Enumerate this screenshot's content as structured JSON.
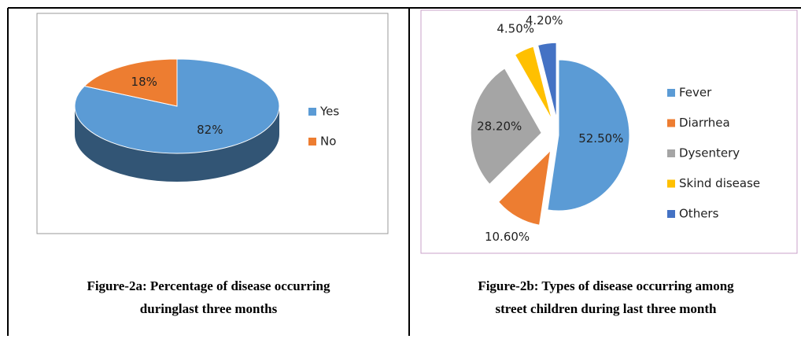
{
  "chart_data": [
    {
      "type": "pie",
      "categories": [
        "Yes",
        "No"
      ],
      "values": [
        82,
        18
      ],
      "value_labels": [
        "82%",
        "18%"
      ],
      "colors": [
        "#5b9bd5",
        "#ed7d31"
      ],
      "caption": [
        "Figure-2a: Percentage of disease occurring",
        "duringlast three months"
      ]
    },
    {
      "type": "pie",
      "categories": [
        "Fever",
        "Diarrhea",
        "Dysentery",
        "Skind disease",
        "Others"
      ],
      "values": [
        52.5,
        10.6,
        28.2,
        4.5,
        4.2
      ],
      "value_labels": [
        "52.50%",
        "10.60%",
        "28.20%",
        "4.50%",
        "4.20%"
      ],
      "colors": [
        "#5b9bd5",
        "#ed7d31",
        "#a5a5a5",
        "#ffc000",
        "#4472c4"
      ],
      "caption": [
        "Figure-2b: Types of disease occurring among",
        "street children during last three month"
      ]
    }
  ]
}
